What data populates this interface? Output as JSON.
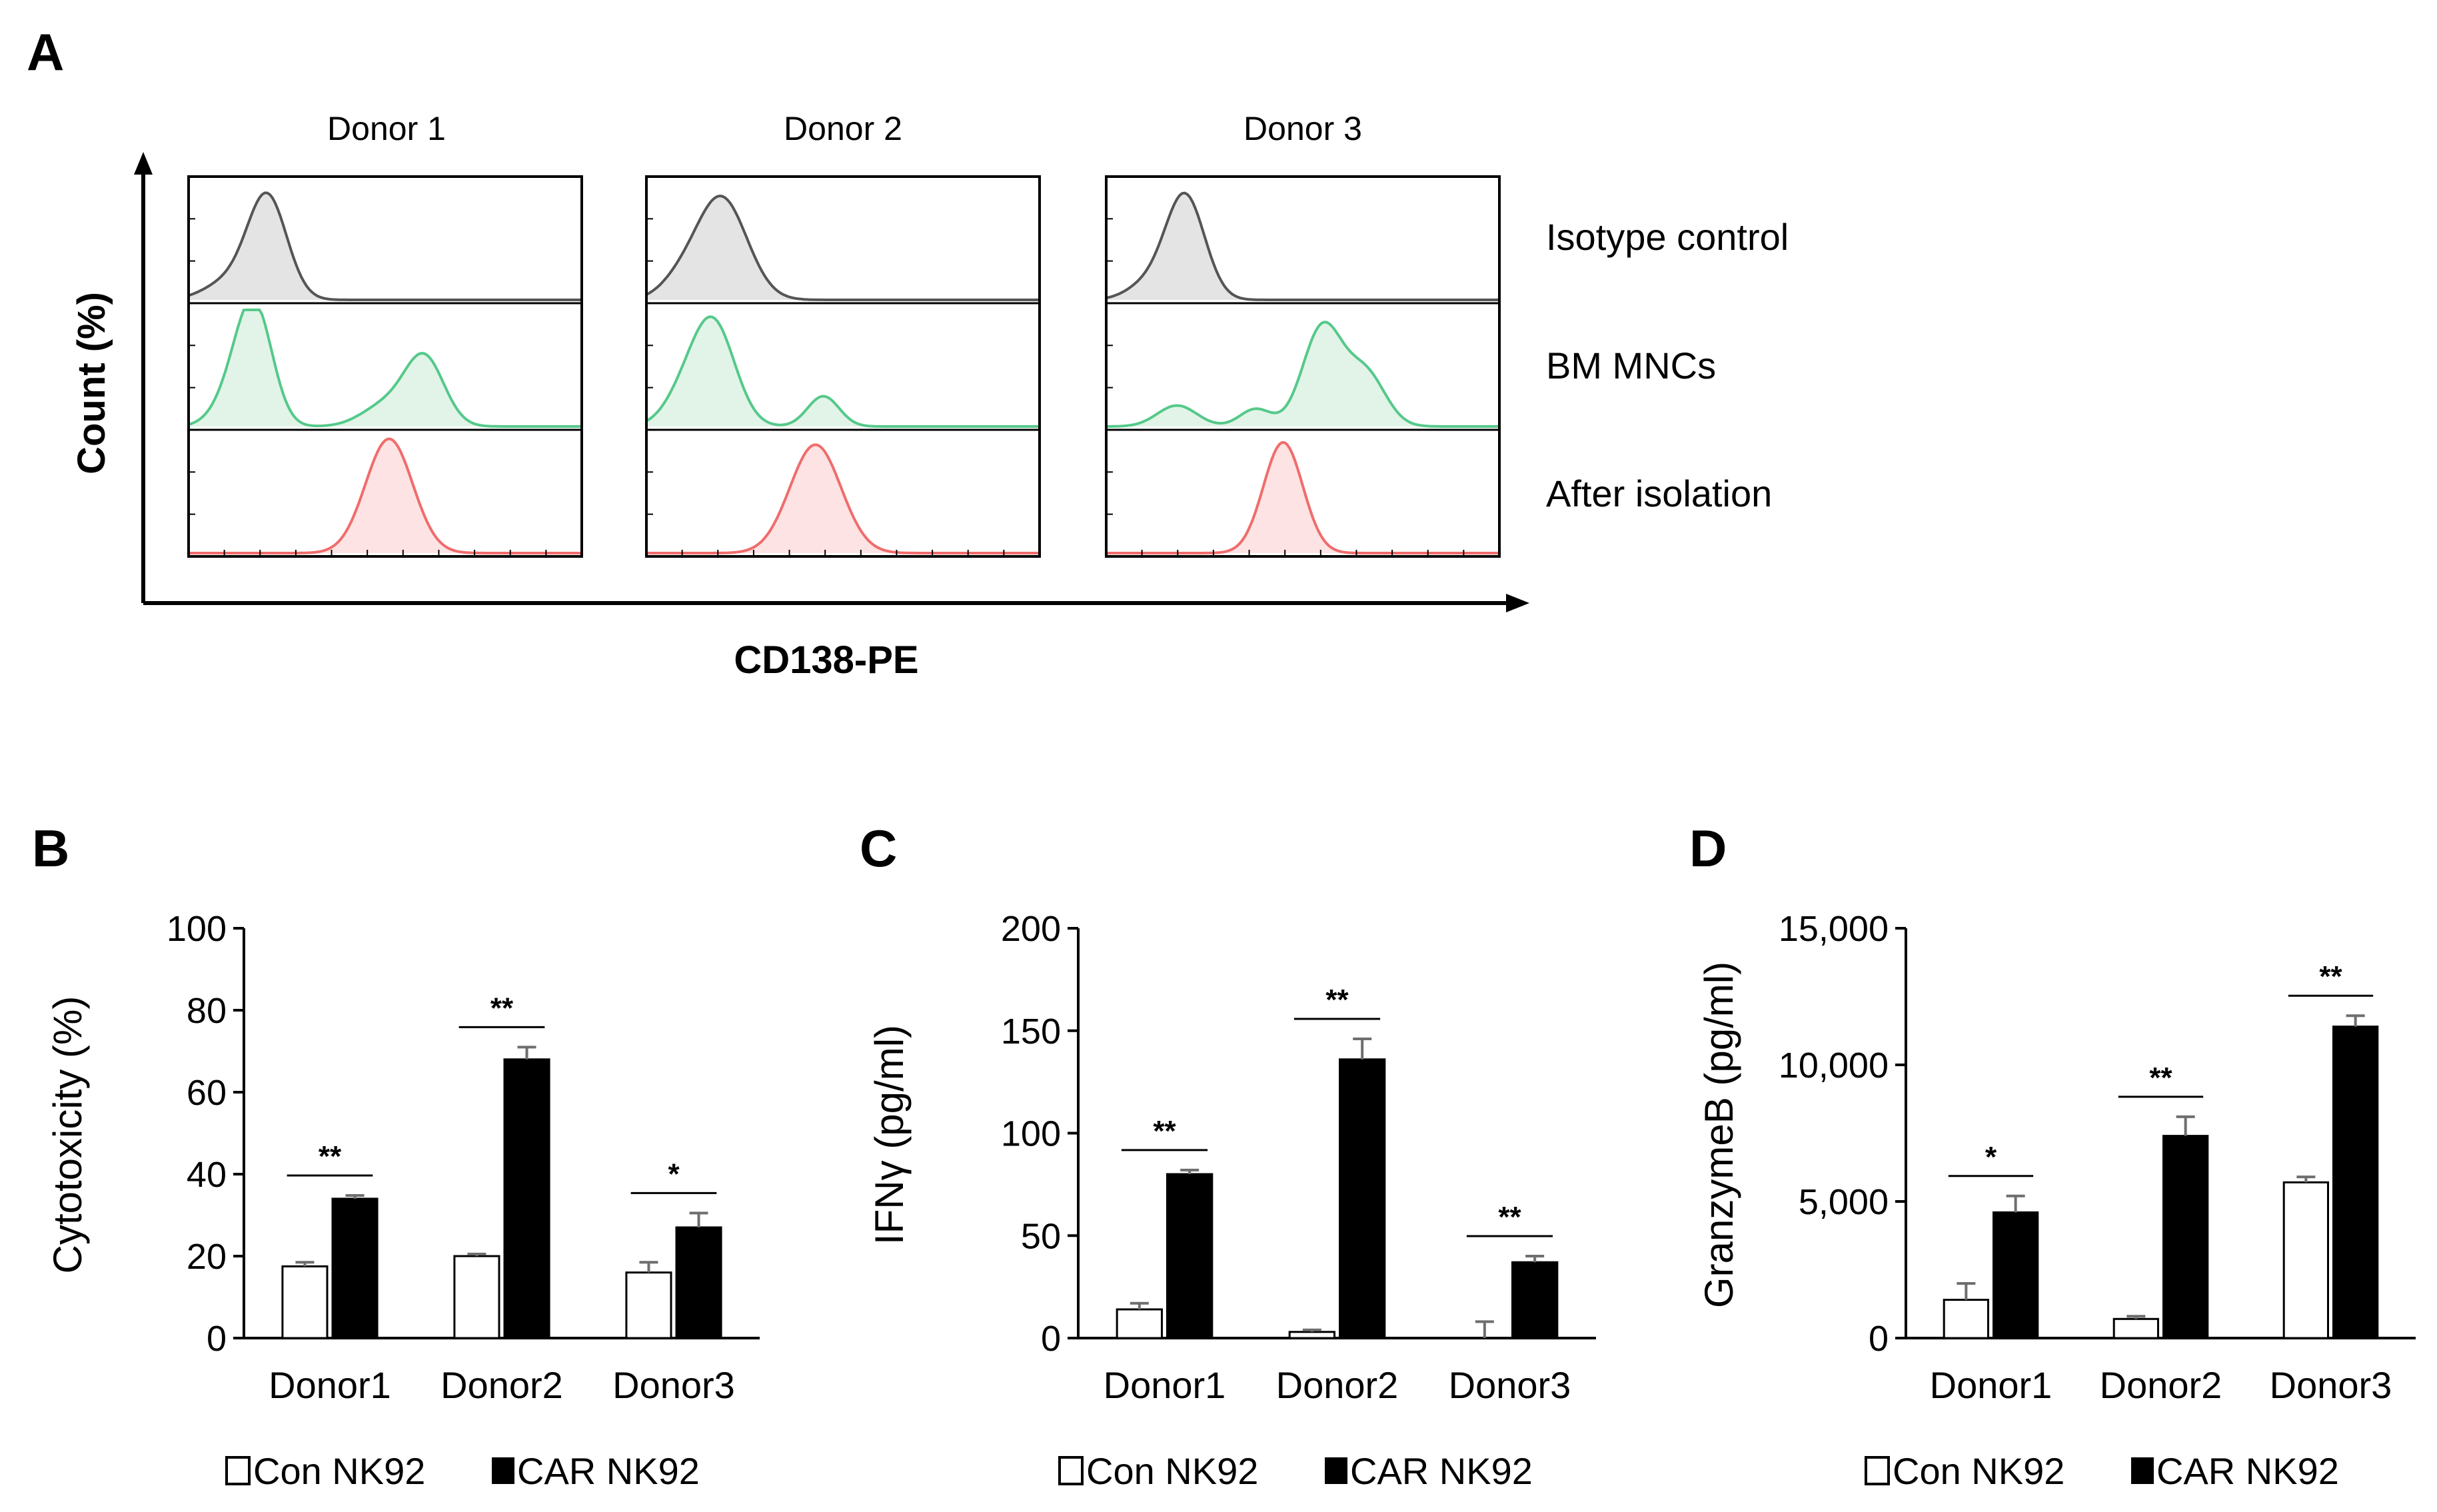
{
  "panel_a": {
    "letter": "A",
    "donors": [
      "Donor 1",
      "Donor 2",
      "Donor 3"
    ],
    "samples": [
      {
        "label": "Isotype control",
        "color": "#555555",
        "fill": "#e4e4e4"
      },
      {
        "label": "BM MNCs",
        "color": "#55c98a",
        "fill": "#e2f4e8"
      },
      {
        "label": "After isolation",
        "color": "#f06c6c",
        "fill": "#fde3e3"
      }
    ],
    "ylabel": "Count (%)",
    "xlabel": "CD138-PE"
  },
  "legend": {
    "con": "Con NK92",
    "car": "CAR NK92"
  },
  "chart_data": [
    {
      "type": "bar",
      "panel": "B",
      "title": "",
      "ylabel": "Cytotoxicity (%)",
      "categories": [
        "Donor1",
        "Donor2",
        "Donor3"
      ],
      "ylim": [
        0,
        100
      ],
      "yticks": [
        0,
        20,
        40,
        60,
        80,
        100
      ],
      "ytick_labels": [
        "0",
        "20",
        "40",
        "60",
        "80",
        "100"
      ],
      "series": [
        {
          "name": "Con NK92",
          "values": [
            17.5,
            20,
            16
          ],
          "errors": [
            1,
            0.5,
            2.5
          ]
        },
        {
          "name": "CAR NK92",
          "values": [
            34,
            68,
            27
          ],
          "errors": [
            0.8,
            3,
            3.5
          ]
        }
      ],
      "significance": [
        "**",
        "**",
        "*"
      ]
    },
    {
      "type": "bar",
      "panel": "C",
      "title": "",
      "ylabel": "IFNγ (pg/ml)",
      "categories": [
        "Donor1",
        "Donor2",
        "Donor3"
      ],
      "ylim": [
        0,
        200
      ],
      "yticks": [
        0,
        50,
        100,
        150,
        200
      ],
      "ytick_labels": [
        "0",
        "50",
        "100",
        "150",
        "200"
      ],
      "series": [
        {
          "name": "Con NK92",
          "values": [
            14,
            3,
            0
          ],
          "errors": [
            3,
            1,
            8
          ]
        },
        {
          "name": "CAR NK92",
          "values": [
            80,
            136,
            37
          ],
          "errors": [
            2,
            10,
            3
          ]
        }
      ],
      "significance": [
        "**",
        "**",
        "**"
      ]
    },
    {
      "type": "bar",
      "panel": "D",
      "title": "",
      "ylabel": "GranzymeB (pg/ml)",
      "categories": [
        "Donor1",
        "Donor2",
        "Donor3"
      ],
      "ylim": [
        0,
        15000
      ],
      "yticks": [
        0,
        5000,
        10000,
        15000
      ],
      "ytick_labels": [
        "0",
        "5,000",
        "10,000",
        "15,000"
      ],
      "series": [
        {
          "name": "Con NK92",
          "values": [
            1400,
            700,
            5700
          ],
          "errors": [
            600,
            100,
            200
          ]
        },
        {
          "name": "CAR NK92",
          "values": [
            4600,
            7400,
            11400
          ],
          "errors": [
            600,
            700,
            400
          ]
        }
      ],
      "significance": [
        "*",
        "**",
        "**"
      ]
    }
  ]
}
